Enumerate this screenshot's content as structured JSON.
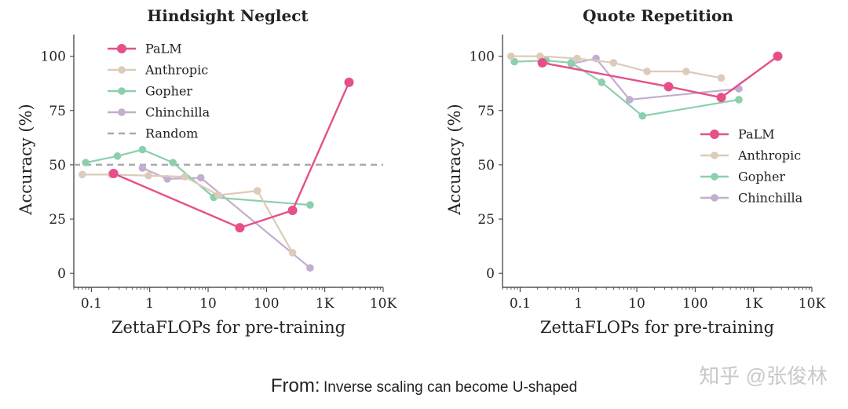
{
  "chart_data": [
    {
      "type": "line",
      "title": "Hindsight Neglect",
      "xlabel": "ZettaFLOPs for pre-training",
      "ylabel": "Accuracy (%)",
      "xscale": "log",
      "xlim": [
        0.05,
        10000
      ],
      "ylim": [
        -5,
        110
      ],
      "xticks": [
        0.1,
        1,
        10,
        100,
        1000,
        10000
      ],
      "xtick_labels": [
        "0.1",
        "1",
        "10",
        "100",
        "1K",
        "10K"
      ],
      "yticks": [
        0,
        25,
        50,
        75,
        100
      ],
      "ytick_labels": [
        "0",
        "25",
        "50",
        "75",
        "100"
      ],
      "grid": false,
      "legend_position": "top-left",
      "reference_line": {
        "name": "Random",
        "y": 50,
        "color": "#aaaaaa"
      },
      "series": [
        {
          "name": "PaLM",
          "color": "#e5508a",
          "x": [
            0.24,
            35,
            280,
            2600
          ],
          "y": [
            46,
            21,
            29,
            88
          ]
        },
        {
          "name": "Anthropic",
          "color": "#dccbb8",
          "x": [
            0.07,
            0.22,
            0.95,
            4,
            15,
            70,
            280
          ],
          "y": [
            45.5,
            45.5,
            45,
            44.5,
            36,
            38,
            9.5
          ]
        },
        {
          "name": "Gopher",
          "color": "#8ccfad",
          "x": [
            0.08,
            0.28,
            0.75,
            2.5,
            12.5,
            560
          ],
          "y": [
            51,
            54,
            57,
            51,
            35,
            31.5
          ]
        },
        {
          "name": "Chinchilla",
          "color": "#c2aed0",
          "x": [
            0.75,
            2,
            7.5,
            560
          ],
          "y": [
            48.5,
            43.5,
            44,
            2.5
          ]
        }
      ]
    },
    {
      "type": "line",
      "title": "Quote Repetition",
      "xlabel": "ZettaFLOPs for pre-training",
      "ylabel": "Accuracy (%)",
      "xscale": "log",
      "xlim": [
        0.05,
        10000
      ],
      "ylim": [
        -5,
        110
      ],
      "xticks": [
        0.1,
        1,
        10,
        100,
        1000,
        10000
      ],
      "xtick_labels": [
        "0.1",
        "1",
        "10",
        "100",
        "1K",
        "10K"
      ],
      "yticks": [
        0,
        25,
        50,
        75,
        100
      ],
      "ytick_labels": [
        "0",
        "25",
        "50",
        "75",
        "100"
      ],
      "grid": false,
      "legend_position": "center-right",
      "series": [
        {
          "name": "PaLM",
          "color": "#e5508a",
          "x": [
            0.24,
            35,
            280,
            2600
          ],
          "y": [
            97,
            86,
            81,
            100
          ]
        },
        {
          "name": "Anthropic",
          "color": "#dccbb8",
          "x": [
            0.07,
            0.22,
            0.95,
            4,
            15,
            70,
            280
          ],
          "y": [
            100,
            100,
            99,
            97,
            93,
            93,
            90
          ]
        },
        {
          "name": "Gopher",
          "color": "#8ccfad",
          "x": [
            0.08,
            0.28,
            0.75,
            2.5,
            12.5,
            560
          ],
          "y": [
            97.5,
            98,
            97,
            88,
            72.5,
            80
          ]
        },
        {
          "name": "Chinchilla",
          "color": "#c2aed0",
          "x": [
            0.75,
            2,
            7.5,
            560
          ],
          "y": [
            96.5,
            99,
            80,
            85
          ]
        }
      ]
    }
  ],
  "caption": {
    "from_label": "From:",
    "text": "Inverse scaling can become U-shaped"
  },
  "watermark": "知乎 @张俊林"
}
